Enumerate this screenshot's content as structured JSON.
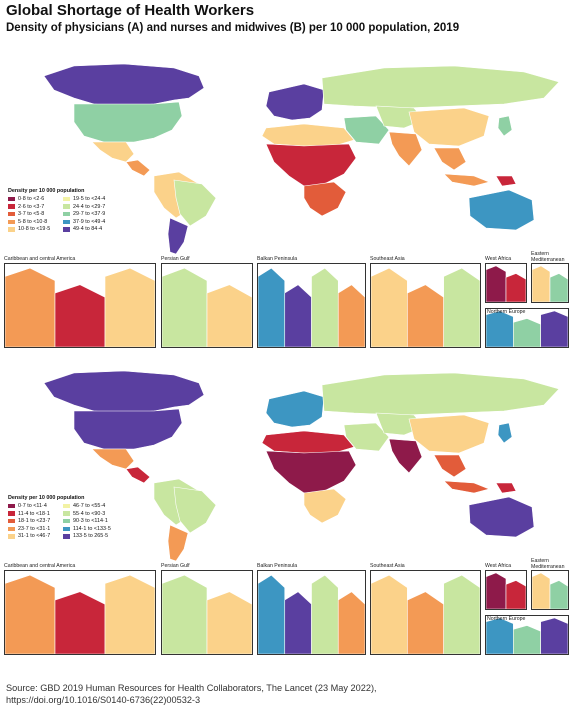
{
  "title": "Global Shortage of Health Workers",
  "subtitle": "Density of physicians (A) and nurses and midwives (B) per 10 000 population, 2019",
  "source_line1": "Source: GBD 2019 Human Resources for Health Collaborators, The Lancet (23 May 2022),",
  "source_line2": "https://doi.org/10.1016/S0140-6736(22)00532-3",
  "panels": [
    {
      "letter": "A",
      "legend_title": "Density per 10 000 population",
      "legend": [
        {
          "label": "0·8 to <2·6",
          "color": "#8e1a4a"
        },
        {
          "label": "2·6 to <3·7",
          "color": "#c8263a"
        },
        {
          "label": "3·7 to <5·8",
          "color": "#e25c3a"
        },
        {
          "label": "5·8 to <10·8",
          "color": "#f39a55"
        },
        {
          "label": "10·8 to <19·5",
          "color": "#fbd28a"
        },
        {
          "label": "19·5 to <24·4",
          "color": "#f2f2a4"
        },
        {
          "label": "24·4 to <29·7",
          "color": "#c8e6a0"
        },
        {
          "label": "29·7 to <37·9",
          "color": "#8fd0a4"
        },
        {
          "label": "37·9 to <49·4",
          "color": "#3d96c2"
        },
        {
          "label": "49·4 to 84·4",
          "color": "#5a3fa0"
        }
      ],
      "regions": {
        "north_america": "#5a3fa0",
        "greenland": "#ffffff",
        "usa": "#8fd0a4",
        "mexico": "#fbd28a",
        "central_america": "#f39a55",
        "south_america": "#fbd28a",
        "brazil": "#c8e6a0",
        "argentina": "#5a3fa0",
        "europe": "#5a3fa0",
        "russia": "#c8e6a0",
        "north_africa": "#fbd28a",
        "africa": "#c8263a",
        "southern_africa": "#e25c3a",
        "middle_east": "#8fd0a4",
        "central_asia": "#c8e6a0",
        "china": "#fbd28a",
        "india": "#f39a55",
        "southeast_asia": "#f39a55",
        "japan": "#8fd0a4",
        "australia": "#3d96c2",
        "indonesia": "#f39a55",
        "png": "#c8263a"
      },
      "insets": [
        {
          "label": "Caribbean and central America"
        },
        {
          "label": "Persian Gulf"
        },
        {
          "label": "Balkan Peninsula"
        },
        {
          "label": "Southeast Asia"
        },
        {
          "label": "West Africa"
        },
        {
          "label": "Eastern Mediterranean"
        },
        {
          "label": "Northern Europe"
        }
      ]
    },
    {
      "letter": "B",
      "legend_title": "Density per 10 000 population",
      "legend": [
        {
          "label": "0·7 to <11·4",
          "color": "#8e1a4a"
        },
        {
          "label": "11·4 to <18·1",
          "color": "#c8263a"
        },
        {
          "label": "18·1 to <23·7",
          "color": "#e25c3a"
        },
        {
          "label": "23·7 to <31·1",
          "color": "#f39a55"
        },
        {
          "label": "31·1 to <46·7",
          "color": "#fbd28a"
        },
        {
          "label": "46·7 to <55·4",
          "color": "#f2f2a4"
        },
        {
          "label": "55·4 to <90·3",
          "color": "#c8e6a0"
        },
        {
          "label": "90·3 to <114·1",
          "color": "#8fd0a4"
        },
        {
          "label": "114·1 to <133·5",
          "color": "#3d96c2"
        },
        {
          "label": "133·5 to 265·5",
          "color": "#5a3fa0"
        }
      ],
      "regions": {
        "north_america": "#5a3fa0",
        "greenland": "#ffffff",
        "usa": "#5a3fa0",
        "mexico": "#f39a55",
        "central_america": "#c8263a",
        "south_america": "#c8e6a0",
        "brazil": "#c8e6a0",
        "argentina": "#f39a55",
        "europe": "#3d96c2",
        "russia": "#c8e6a0",
        "north_africa": "#c8263a",
        "africa": "#8e1a4a",
        "southern_africa": "#fbd28a",
        "middle_east": "#c8e6a0",
        "central_asia": "#c8e6a0",
        "china": "#fbd28a",
        "india": "#8e1a4a",
        "southeast_asia": "#e25c3a",
        "japan": "#3d96c2",
        "australia": "#5a3fa0",
        "indonesia": "#e25c3a",
        "png": "#c8263a"
      },
      "insets": [
        {
          "label": "Caribbean and central America"
        },
        {
          "label": "Persian Gulf"
        },
        {
          "label": "Balkan Peninsula"
        },
        {
          "label": "Southeast Asia"
        },
        {
          "label": "West Africa"
        },
        {
          "label": "Eastern Mediterranean"
        },
        {
          "label": "Northern Europe"
        }
      ]
    }
  ]
}
